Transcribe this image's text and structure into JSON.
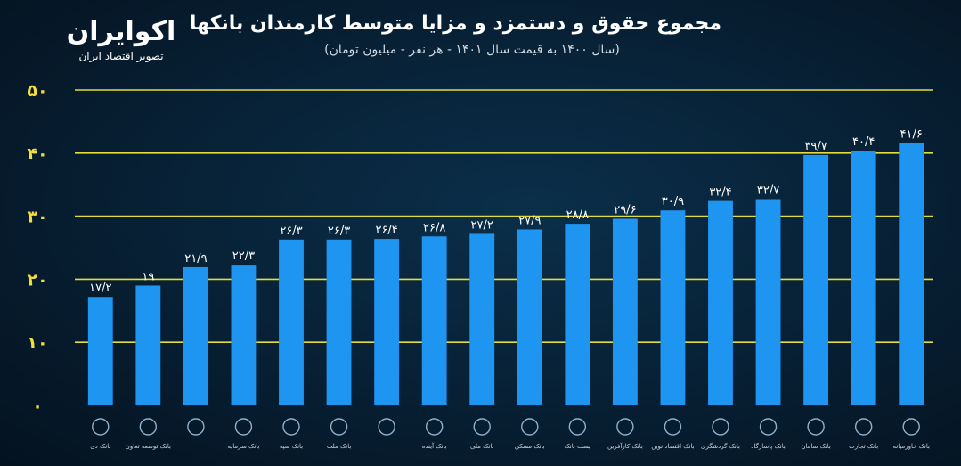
{
  "title": "مجموع حقوق و دستمزد و مزایا متوسط کارمندان بانکها",
  "subtitle": "(سال ۱۴۰۰ به قیمت سال ۱۴۰۱ - هر نفر - میلیون تومان)",
  "brand": {
    "name": "اکوایران",
    "tagline": "تصویر اقتصاد ایران"
  },
  "colors": {
    "bar": "#1f95f2",
    "grid": "#e3dc3c",
    "axis_text": "#f3de3a",
    "label_text": "#ffffff"
  },
  "chart_data": {
    "type": "bar",
    "title": "مجموع حقوق و دستمزد و مزایا متوسط کارمندان بانکها",
    "subtitle": "(سال ۱۴۰۰ به قیمت سال ۱۴۰۱ - هر نفر - میلیون تومان)",
    "categories": [
      "بانک دی",
      "بانک توسعه تعاون",
      "",
      "بانک سرمایه",
      "بانک سپه",
      "بانک ملت",
      "",
      "بانک آینده",
      "بانک ملی",
      "بانک مسکن",
      "پست بانک",
      "بانک کارآفرین",
      "بانک اقتصاد نوین",
      "بانک گردشگری",
      "بانک پاسارگاد",
      "بانک سامان",
      "بانک تجارت",
      "بانک خاورمیانه"
    ],
    "values": [
      17.2,
      19,
      21.9,
      22.3,
      26.3,
      26.3,
      26.4,
      26.8,
      27.2,
      27.9,
      28.8,
      29.6,
      30.9,
      32.4,
      32.7,
      39.7,
      40.4,
      41.6
    ],
    "value_labels": [
      "۱۷/۲",
      "۱۹",
      "۲۱/۹",
      "۲۲/۳",
      "۲۶/۳",
      "۲۶/۳",
      "۲۶/۴",
      "۲۶/۸",
      "۲۷/۲",
      "۲۷/۹",
      "۲۸/۸",
      "۲۹/۶",
      "۳۰/۹",
      "۳۲/۴",
      "۳۲/۷",
      "۳۹/۷",
      "۴۰/۴",
      "۴۱/۶"
    ],
    "yticks": [
      0,
      10,
      20,
      30,
      40,
      50
    ],
    "ytick_labels": [
      "۰",
      "۱۰",
      "۲۰",
      "۳۰",
      "۴۰",
      "۵۰"
    ],
    "ylim": [
      0,
      50
    ],
    "grid": true,
    "legend": "none"
  }
}
